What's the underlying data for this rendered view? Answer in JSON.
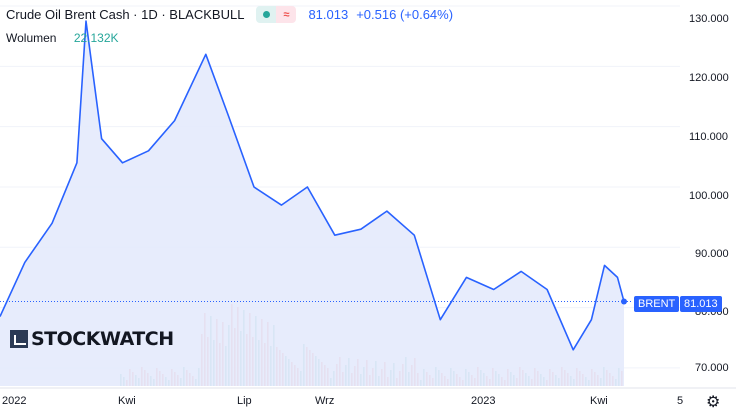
{
  "legend": {
    "title": "Crude Oil Brent Cash · 1D · BLACKBULL",
    "price": "81.013",
    "change": "+0.516 (+0.64%)",
    "volume_label": "Wolumen",
    "volume_value": "22.132K"
  },
  "price_axis": {
    "ticks": [
      "130.000",
      "120.000",
      "110.000",
      "100.000",
      "90.000",
      "80.000",
      "70.000"
    ]
  },
  "time_axis": {
    "ticks": [
      "2022",
      "Kwi",
      "Lip",
      "Wrz",
      "2023",
      "Kwi",
      "5"
    ]
  },
  "badges": {
    "symbol": "BRENT",
    "price": "81.013"
  },
  "watermark": "STOCKWATCH",
  "icons": {
    "settings": "gear-icon",
    "indicator_toggle": "dot-icon",
    "wave": "wave-icon"
  },
  "colors": {
    "line": "#2962ff",
    "volume_up": "#26a69a",
    "volume_down": "#ef5350",
    "badge": "#2962ff"
  },
  "chart_data": {
    "type": "area",
    "x": [
      "2022-01-01",
      "2022-01-20",
      "2022-02-10",
      "2022-03-01",
      "2022-03-08",
      "2022-03-20",
      "2022-04-05",
      "2022-04-25",
      "2022-05-15",
      "2022-06-08",
      "2022-06-25",
      "2022-07-15",
      "2022-08-05",
      "2022-08-25",
      "2022-09-15",
      "2022-10-05",
      "2022-10-25",
      "2022-11-15",
      "2022-12-05",
      "2022-12-25",
      "2023-01-15",
      "2023-02-05",
      "2023-02-25",
      "2023-03-17",
      "2023-03-31",
      "2023-04-10",
      "2023-04-20",
      "2023-04-25"
    ],
    "values": [
      78.5,
      87.5,
      94,
      104,
      127.5,
      108,
      104,
      106,
      111,
      122,
      112,
      100,
      97,
      100,
      92,
      93,
      96,
      92,
      78,
      85,
      83,
      86,
      83,
      73,
      78,
      87,
      85,
      81.0
    ],
    "ylim": [
      67,
      131
    ],
    "volume_series": true,
    "last_price": 81.013
  }
}
